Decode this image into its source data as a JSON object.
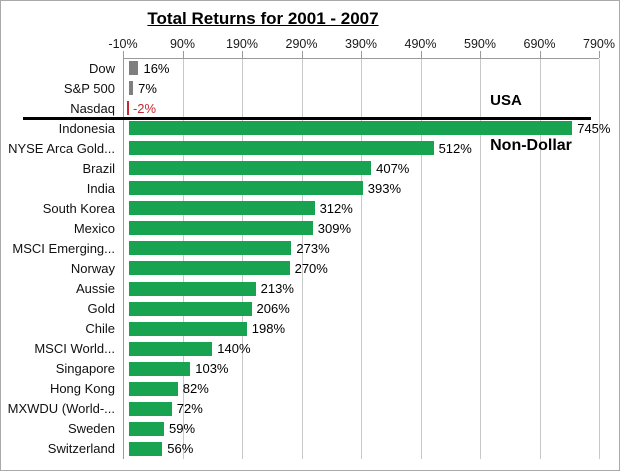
{
  "title": "Total Returns for 2001 - 2007",
  "annotations": {
    "usa": "USA",
    "non_dollar": "Non-Dollar"
  },
  "chart_data": {
    "type": "bar",
    "orientation": "horizontal",
    "title": "Total Returns for 2001 - 2007",
    "axis": {
      "tick_labels": [
        "-10%",
        "90%",
        "190%",
        "290%",
        "390%",
        "490%",
        "590%",
        "690%",
        "790%"
      ],
      "tick_values": [
        -10,
        90,
        190,
        290,
        390,
        490,
        590,
        690,
        790
      ],
      "min": -10,
      "max": 790,
      "grid": true,
      "axis_position": "top"
    },
    "categories": [
      "Dow",
      "S&P 500",
      "Nasdaq",
      "Indonesia",
      "NYSE Arca Gold...",
      "Brazil",
      "India",
      "South Korea",
      "Mexico",
      "MSCI Emerging...",
      "Norway",
      "Aussie",
      "Gold",
      "Chile",
      "MSCI World...",
      "Singapore",
      "Hong Kong",
      "MXWDU (World-...",
      "Sweden",
      "Switzerland"
    ],
    "values": [
      16,
      7,
      -2,
      745,
      512,
      407,
      393,
      312,
      309,
      273,
      270,
      213,
      206,
      198,
      140,
      103,
      82,
      72,
      59,
      56
    ],
    "value_labels": [
      "16%",
      "7%",
      "-2%",
      "745%",
      "512%",
      "407%",
      "393%",
      "312%",
      "309%",
      "273%",
      "270%",
      "213%",
      "206%",
      "198%",
      "140%",
      "103%",
      "82%",
      "72%",
      "59%",
      "56%"
    ],
    "bar_color_keys": [
      "gray",
      "gray",
      "red",
      "green",
      "green",
      "green",
      "green",
      "green",
      "green",
      "green",
      "green",
      "green",
      "green",
      "green",
      "green",
      "green",
      "green",
      "green",
      "green",
      "green"
    ],
    "palette": {
      "gray": "#7f7f7f",
      "red": "#c3292e",
      "green": "#17a34f"
    },
    "groups": {
      "usa_rows": [
        "Dow",
        "S&P 500",
        "Nasdaq"
      ],
      "non_dollar_rows_start": "Indonesia"
    },
    "legend": "none"
  }
}
